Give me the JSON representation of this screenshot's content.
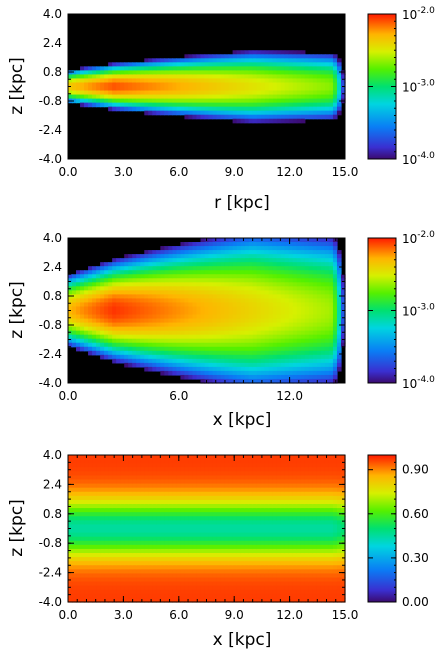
{
  "chart_data": [
    {
      "type": "heatmap",
      "xlabel": "r [kpc]",
      "ylabel": "z [kpc]",
      "xlim": [
        0,
        15
      ],
      "ylim": [
        -4,
        4
      ],
      "xticks": [
        "0.0",
        "3.0",
        "6.0",
        "9.0",
        "12.0",
        "15.0"
      ],
      "yticks": [
        "4.0",
        "2.4",
        "0.8",
        "-0.8",
        "-2.4",
        "-4.0"
      ],
      "colorbar": {
        "scale": "log",
        "range": [
          0.0001,
          0.01
        ],
        "ticks": [
          {
            "base": "10",
            "exp": "-2.0"
          },
          {
            "base": "10",
            "exp": "-3.0"
          },
          {
            "base": "10",
            "exp": "-4.0"
          }
        ]
      },
      "field": {
        "description_free": true,
        "radial_extent_kpc": 15,
        "peak_r_kpc": 2.5,
        "z_half_thickness_kpc": [
          0.6,
          1.35
        ],
        "peak_value": 0.008,
        "min_value": 0.0001
      }
    },
    {
      "type": "heatmap",
      "xlabel": "x [kpc]",
      "ylabel": "z [kpc]",
      "xlim": [
        0,
        15
      ],
      "ylim": [
        -4,
        4
      ],
      "xticks": [
        "0.0",
        "6.0",
        "12.0"
      ],
      "yticks": [
        "4.0",
        "2.4",
        "0.8",
        "-0.8",
        "-2.4",
        "-4.0"
      ],
      "colorbar": {
        "scale": "log",
        "range": [
          0.0001,
          0.01
        ],
        "ticks": [
          {
            "base": "10",
            "exp": "-2.0"
          },
          {
            "base": "10",
            "exp": "-3.0"
          },
          {
            "base": "10",
            "exp": "-4.0"
          }
        ]
      },
      "field": {
        "radial_extent_kpc": 15,
        "peak_r_kpc": 2.5,
        "z_half_thickness_kpc": [
          1.3,
          3.0
        ],
        "peak_value": 0.009,
        "min_value": 0.0001
      }
    },
    {
      "type": "heatmap",
      "xlabel": "x [kpc]",
      "ylabel": "z [kpc]",
      "xlim": [
        0,
        15
      ],
      "ylim": [
        -4,
        4
      ],
      "xticks": [
        "0.0",
        "3.0",
        "6.0",
        "9.0",
        "12.0",
        "15.0"
      ],
      "yticks": [
        "4.0",
        "2.4",
        "0.8",
        "-0.8",
        "-2.4",
        "-4.0"
      ],
      "colorbar": {
        "scale": "linear",
        "range": [
          0,
          1
        ],
        "ticks": [
          "0.90",
          "0.60",
          "0.30",
          "0.00"
        ]
      },
      "field": {
        "midplane_value": 0.45,
        "far_value": 0.97
      }
    }
  ]
}
